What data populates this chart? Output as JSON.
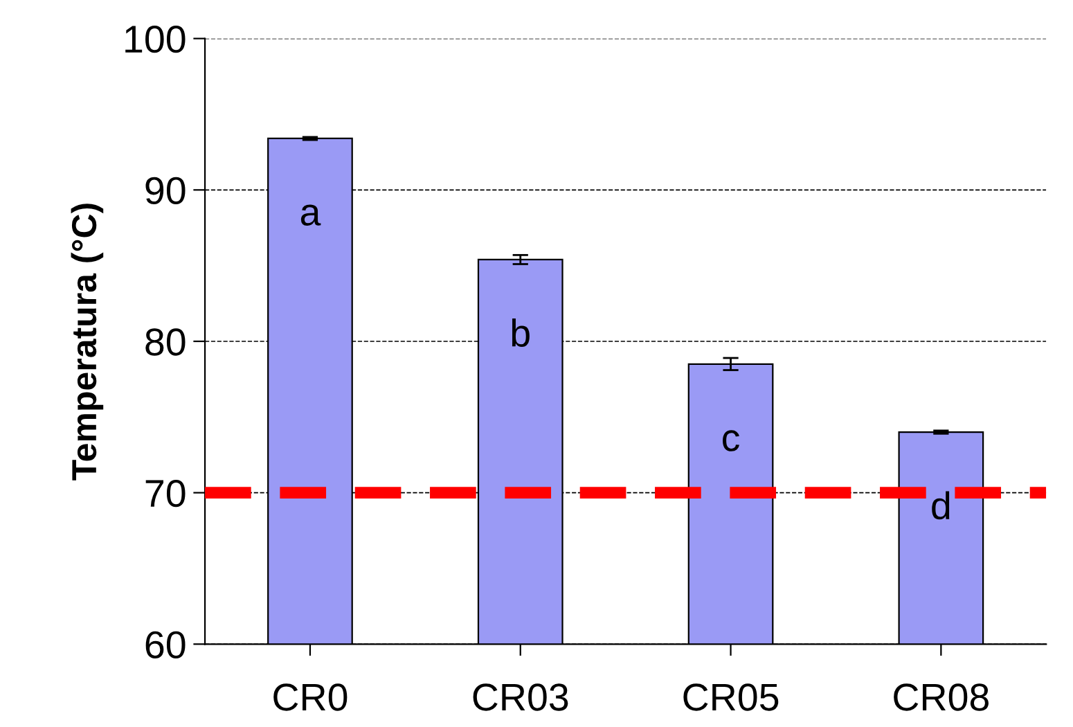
{
  "chart_data": {
    "type": "bar",
    "ylabel": "Temperatura (°C)",
    "categories": [
      "CR0",
      "CR03",
      "CR05",
      "CR08"
    ],
    "values": [
      93.4,
      85.4,
      78.5,
      74.0
    ],
    "errors": [
      0.1,
      0.3,
      0.4,
      0.1
    ],
    "color": "#9a9af5",
    "ylim": [
      60,
      100
    ],
    "yticks": [
      60,
      70,
      80,
      90,
      100
    ],
    "grid": "y",
    "ref_lines": [
      {
        "axis": "y",
        "value": 70,
        "color": "#ff0000",
        "line_style": "dashed"
      }
    ],
    "annotations": [
      "a",
      "b",
      "c",
      "d"
    ]
  }
}
